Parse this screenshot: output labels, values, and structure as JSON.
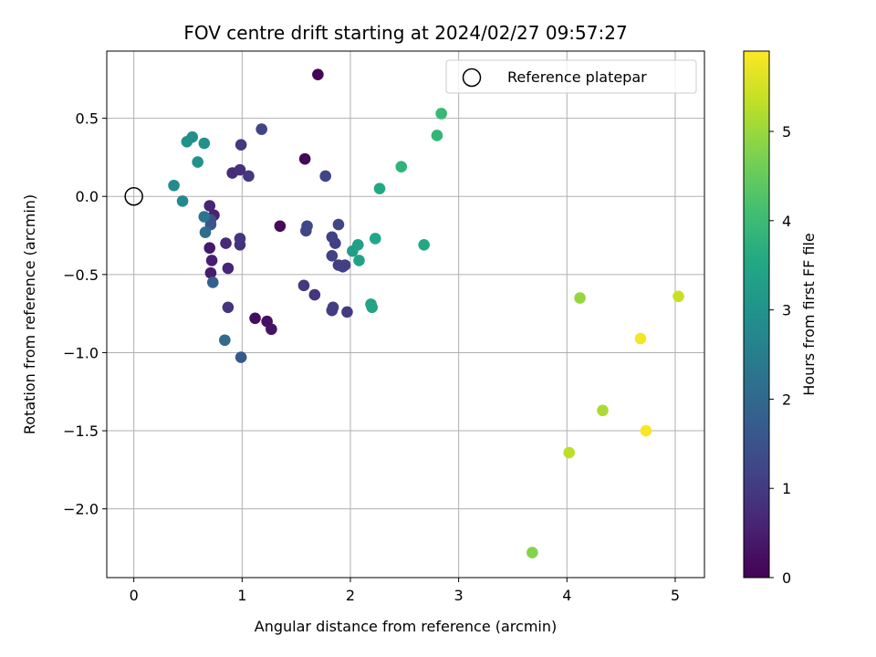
{
  "chart_data": {
    "type": "scatter",
    "title": "FOV centre drift starting at 2024/02/27 09:57:27",
    "xlabel": "Angular distance from reference (arcmin)",
    "ylabel": "Rotation from reference (arcmin)",
    "xlim": [
      -0.25,
      5.27
    ],
    "ylim": [
      -2.44,
      0.93
    ],
    "xticks": [
      0,
      1,
      2,
      3,
      4,
      5
    ],
    "yticks": [
      -2.0,
      -1.5,
      -1.0,
      -0.5,
      0.0,
      0.5
    ],
    "ytick_labels": [
      "−2.0",
      "−1.5",
      "−1.0",
      "−0.5",
      "0.0",
      "0.5"
    ],
    "grid": true,
    "colormap": "viridis",
    "colorbar": {
      "label": "Hours from first FF file",
      "min": 0,
      "max": 5.9,
      "ticks": [
        0,
        1,
        2,
        3,
        4,
        5
      ]
    },
    "legend": {
      "position": "top-right",
      "entries": [
        {
          "label": "Reference platepar",
          "marker": "open-circle",
          "color": "#000000"
        }
      ]
    },
    "reference_point": {
      "x": 0,
      "y": 0
    },
    "points": [
      {
        "x": 1.7,
        "y": 0.78,
        "h": 0.05
      },
      {
        "x": 1.58,
        "y": 0.24,
        "h": 0.1
      },
      {
        "x": 1.35,
        "y": -0.19,
        "h": 0.15
      },
      {
        "x": 1.12,
        "y": -0.78,
        "h": 0.2
      },
      {
        "x": 1.23,
        "y": -0.8,
        "h": 0.25
      },
      {
        "x": 1.27,
        "y": -0.85,
        "h": 0.3
      },
      {
        "x": 0.7,
        "y": -0.33,
        "h": 0.4
      },
      {
        "x": 0.71,
        "y": -0.49,
        "h": 0.45
      },
      {
        "x": 0.72,
        "y": -0.41,
        "h": 0.5
      },
      {
        "x": 0.74,
        "y": -0.12,
        "h": 0.55
      },
      {
        "x": 0.7,
        "y": -0.06,
        "h": 0.6
      },
      {
        "x": 0.87,
        "y": -0.46,
        "h": 0.65
      },
      {
        "x": 0.85,
        "y": -0.3,
        "h": 0.7
      },
      {
        "x": 0.91,
        "y": 0.15,
        "h": 0.75
      },
      {
        "x": 0.98,
        "y": 0.17,
        "h": 0.8
      },
      {
        "x": 0.98,
        "y": -0.31,
        "h": 0.85
      },
      {
        "x": 0.98,
        "y": -0.27,
        "h": 0.9
      },
      {
        "x": 1.06,
        "y": 0.13,
        "h": 0.95
      },
      {
        "x": 0.99,
        "y": 0.33,
        "h": 0.95
      },
      {
        "x": 0.87,
        "y": -0.71,
        "h": 0.9
      },
      {
        "x": 1.67,
        "y": -0.63,
        "h": 0.9
      },
      {
        "x": 1.57,
        "y": -0.57,
        "h": 1.0
      },
      {
        "x": 1.97,
        "y": -0.74,
        "h": 1.0
      },
      {
        "x": 1.83,
        "y": -0.73,
        "h": 1.05
      },
      {
        "x": 1.84,
        "y": -0.71,
        "h": 1.05
      },
      {
        "x": 1.89,
        "y": -0.44,
        "h": 1.05
      },
      {
        "x": 1.93,
        "y": -0.45,
        "h": 1.1
      },
      {
        "x": 1.95,
        "y": -0.44,
        "h": 1.1
      },
      {
        "x": 1.86,
        "y": -0.3,
        "h": 1.1
      },
      {
        "x": 1.83,
        "y": -0.38,
        "h": 1.15
      },
      {
        "x": 1.83,
        "y": -0.26,
        "h": 1.15
      },
      {
        "x": 1.89,
        "y": -0.18,
        "h": 1.2
      },
      {
        "x": 1.59,
        "y": -0.22,
        "h": 1.2
      },
      {
        "x": 1.6,
        "y": -0.19,
        "h": 1.25
      },
      {
        "x": 1.77,
        "y": 0.13,
        "h": 1.2
      },
      {
        "x": 1.18,
        "y": 0.43,
        "h": 1.2
      },
      {
        "x": 0.71,
        "y": -0.15,
        "h": 1.5
      },
      {
        "x": 0.71,
        "y": -0.18,
        "h": 1.55
      },
      {
        "x": 0.99,
        "y": -1.03,
        "h": 1.65
      },
      {
        "x": 0.73,
        "y": -0.55,
        "h": 1.8
      },
      {
        "x": 0.84,
        "y": -0.92,
        "h": 2.05
      },
      {
        "x": 0.66,
        "y": -0.23,
        "h": 2.1
      },
      {
        "x": 0.65,
        "y": -0.13,
        "h": 2.3
      },
      {
        "x": 0.45,
        "y": -0.03,
        "h": 2.75
      },
      {
        "x": 0.37,
        "y": 0.07,
        "h": 2.8
      },
      {
        "x": 0.49,
        "y": 0.35,
        "h": 2.95
      },
      {
        "x": 0.54,
        "y": 0.38,
        "h": 2.9
      },
      {
        "x": 0.65,
        "y": 0.34,
        "h": 2.95
      },
      {
        "x": 0.59,
        "y": 0.22,
        "h": 3.0
      },
      {
        "x": 2.02,
        "y": -0.35,
        "h": 3.25
      },
      {
        "x": 2.07,
        "y": -0.31,
        "h": 3.3
      },
      {
        "x": 2.08,
        "y": -0.41,
        "h": 3.35
      },
      {
        "x": 2.19,
        "y": -0.69,
        "h": 3.4
      },
      {
        "x": 2.2,
        "y": -0.71,
        "h": 3.45
      },
      {
        "x": 2.23,
        "y": -0.27,
        "h": 3.5
      },
      {
        "x": 2.27,
        "y": 0.05,
        "h": 3.55
      },
      {
        "x": 2.68,
        "y": -0.31,
        "h": 3.55
      },
      {
        "x": 2.47,
        "y": 0.19,
        "h": 3.8
      },
      {
        "x": 2.8,
        "y": 0.39,
        "h": 3.85
      },
      {
        "x": 2.84,
        "y": 0.53,
        "h": 3.95
      },
      {
        "x": 3.68,
        "y": -2.28,
        "h": 4.8
      },
      {
        "x": 4.12,
        "y": -0.65,
        "h": 4.95
      },
      {
        "x": 4.33,
        "y": -1.37,
        "h": 5.15
      },
      {
        "x": 4.02,
        "y": -1.64,
        "h": 5.3
      },
      {
        "x": 5.03,
        "y": -0.64,
        "h": 5.4
      },
      {
        "x": 4.68,
        "y": -0.91,
        "h": 5.8
      },
      {
        "x": 4.73,
        "y": -1.5,
        "h": 5.85
      }
    ]
  }
}
